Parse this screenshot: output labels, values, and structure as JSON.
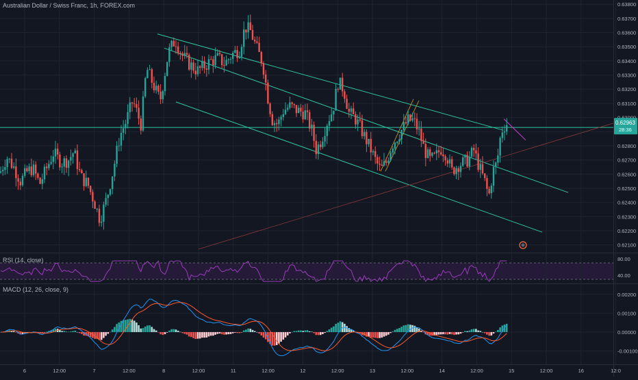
{
  "title": "Australian Dollar / Swiss Franc, 1h, FOREX.com",
  "colors": {
    "background": "#131722",
    "grid": "#1f2430",
    "up": "#26a69a",
    "down": "#ef5350",
    "channel": "#2ec4a0",
    "hline": "#2ec4a0",
    "trend": "#8b3a3a",
    "rsi": "#9b3dbd",
    "macd": "#2196f3",
    "signal": "#ff5a2c"
  },
  "chart_data": [
    {
      "type": "candlestick",
      "title": "Australian Dollar / Swiss Franc, 1h, FOREX.com",
      "x_ticks": [
        "6",
        "12:00",
        "7",
        "12:00",
        "8",
        "12:00",
        "11",
        "12:00",
        "12",
        "12:00",
        "13",
        "12:00",
        "14",
        "12:00",
        "15",
        "12:00",
        "16",
        "12:0"
      ],
      "y_ticks": [
        "0.63800",
        "0.63700",
        "0.63600",
        "0.63500",
        "0.63400",
        "0.63300",
        "0.63200",
        "0.63100",
        "0.63000",
        "0.62900",
        "0.62800",
        "0.62700",
        "0.62600",
        "0.62500",
        "0.62400",
        "0.62300",
        "0.62200",
        "0.62100"
      ],
      "ylim": [
        0.6205,
        0.6383
      ],
      "last_price": "0.62963",
      "countdown": "28:36",
      "close_path": [
        [
          0,
          0.6261
        ],
        [
          10,
          0.6272
        ],
        [
          20,
          0.6265
        ],
        [
          30,
          0.6255
        ],
        [
          40,
          0.6262
        ],
        [
          48,
          0.6264
        ],
        [
          58,
          0.6253
        ],
        [
          68,
          0.6264
        ],
        [
          78,
          0.6275
        ],
        [
          90,
          0.6268
        ],
        [
          100,
          0.627
        ],
        [
          108,
          0.6276
        ],
        [
          118,
          0.6258
        ],
        [
          128,
          0.6253
        ],
        [
          138,
          0.624
        ],
        [
          146,
          0.6228
        ],
        [
          156,
          0.6243
        ],
        [
          165,
          0.6262
        ],
        [
          175,
          0.6287
        ],
        [
          184,
          0.6297
        ],
        [
          194,
          0.6312
        ],
        [
          206,
          0.6295
        ],
        [
          214,
          0.6335
        ],
        [
          224,
          0.6323
        ],
        [
          234,
          0.6312
        ],
        [
          246,
          0.6346
        ],
        [
          256,
          0.6355
        ],
        [
          266,
          0.6344
        ],
        [
          276,
          0.6338
        ],
        [
          288,
          0.6333
        ],
        [
          298,
          0.6336
        ],
        [
          308,
          0.634
        ],
        [
          318,
          0.6342
        ],
        [
          328,
          0.6338
        ],
        [
          340,
          0.6345
        ],
        [
          350,
          0.6348
        ],
        [
          358,
          0.6364
        ],
        [
          366,
          0.6361
        ],
        [
          374,
          0.635
        ],
        [
          384,
          0.6338
        ],
        [
          392,
          0.6312
        ],
        [
          398,
          0.6298
        ],
        [
          406,
          0.6295
        ],
        [
          414,
          0.6305
        ],
        [
          424,
          0.6308
        ],
        [
          434,
          0.6305
        ],
        [
          446,
          0.6303
        ],
        [
          456,
          0.629
        ],
        [
          462,
          0.6277
        ],
        [
          470,
          0.6285
        ],
        [
          478,
          0.6297
        ],
        [
          486,
          0.6305
        ],
        [
          494,
          0.6325
        ],
        [
          502,
          0.632
        ],
        [
          510,
          0.6303
        ],
        [
          518,
          0.63
        ],
        [
          526,
          0.6293
        ],
        [
          534,
          0.6285
        ],
        [
          542,
          0.6277
        ],
        [
          550,
          0.6268
        ],
        [
          556,
          0.6263
        ],
        [
          564,
          0.6268
        ],
        [
          572,
          0.628
        ],
        [
          580,
          0.6286
        ],
        [
          588,
          0.6292
        ],
        [
          596,
          0.6298
        ],
        [
          604,
          0.6298
        ],
        [
          612,
          0.629
        ],
        [
          620,
          0.6277
        ],
        [
          628,
          0.627
        ],
        [
          636,
          0.6272
        ],
        [
          644,
          0.6278
        ],
        [
          652,
          0.6274
        ],
        [
          660,
          0.6262
        ],
        [
          668,
          0.6266
        ],
        [
          676,
          0.6268
        ],
        [
          684,
          0.627
        ],
        [
          692,
          0.6277
        ],
        [
          700,
          0.6265
        ],
        [
          708,
          0.6255
        ],
        [
          714,
          0.6244
        ],
        [
          720,
          0.6262
        ],
        [
          726,
          0.6268
        ],
        [
          732,
          0.629
        ],
        [
          738,
          0.6295
        ],
        [
          742,
          0.6296
        ]
      ]
    },
    {
      "type": "line",
      "title": "RSI (14, close)",
      "y_ticks": [
        "80.00",
        "40.00"
      ],
      "ylim": [
        20,
        90
      ],
      "bands": [
        70,
        30
      ]
    },
    {
      "type": "bar",
      "title": "MACD (12, 26, close, 9)",
      "y_ticks": [
        "0.00200",
        "0.00100",
        "0.00000",
        "-0.00100"
      ],
      "ylim": [
        -0.0017,
        0.0025
      ]
    }
  ]
}
